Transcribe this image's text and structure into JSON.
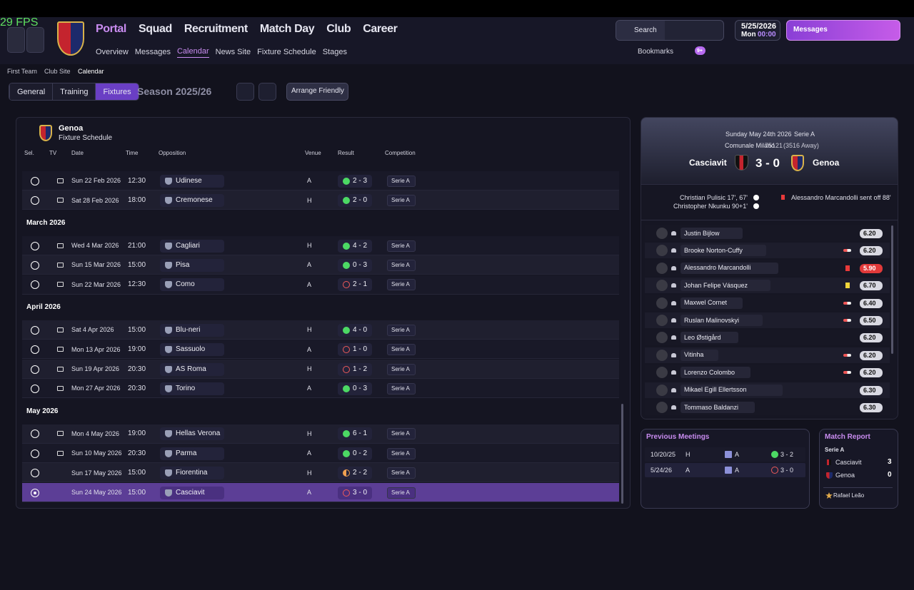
{
  "fps": "29 FPS",
  "nav": {
    "items": [
      "Portal",
      "Squad",
      "Recruitment",
      "Match Day",
      "Club",
      "Career"
    ],
    "subitems": [
      "Overview",
      "Messages",
      "Calendar",
      "News Site",
      "Fixture Schedule",
      "Stages"
    ],
    "search": "Search",
    "date": "5/25/2026",
    "day": "Mon",
    "time": "00:00",
    "messages": "Messages",
    "bookmarks": "Bookmarks",
    "badge": "9+"
  },
  "breadcrumb": [
    "First Team",
    "Club Site",
    "Calendar"
  ],
  "toolbar": {
    "tabs": [
      "General",
      "Training",
      "Fixtures"
    ],
    "season": "Season 2025/26",
    "arrange": "Arrange Friendly"
  },
  "fixtures": {
    "team": "Genoa",
    "subtitle": "Fixture Schedule",
    "columns": [
      "Sel.",
      "TV",
      "Date",
      "Time",
      "Opposition",
      "Venue",
      "Result",
      "Competition"
    ],
    "groups": [
      {
        "rows": [
          {
            "date": "Sun 22 Feb 2026",
            "time": "12:30",
            "opponent": "Udinese",
            "venue": "A",
            "result": "2 - 3",
            "competition": "Serie A",
            "tv": true,
            "outcome": "win"
          },
          {
            "date": "Sat 28 Feb 2026",
            "time": "18:00",
            "opponent": "Cremonese",
            "venue": "H",
            "result": "2 - 0",
            "competition": "Serie A",
            "tv": true,
            "outcome": "win"
          }
        ]
      },
      {
        "month": "March 2026",
        "rows": [
          {
            "date": "Wed 4 Mar 2026",
            "time": "21:00",
            "opponent": "Cagliari",
            "venue": "H",
            "result": "4 - 2",
            "competition": "Serie A",
            "tv": true,
            "outcome": "win"
          },
          {
            "date": "Sun 15 Mar 2026",
            "time": "15:00",
            "opponent": "Pisa",
            "venue": "A",
            "result": "0 - 3",
            "competition": "Serie A",
            "tv": true,
            "outcome": "win"
          },
          {
            "date": "Sun 22 Mar 2026",
            "time": "12:30",
            "opponent": "Como",
            "venue": "A",
            "result": "2 - 1",
            "competition": "Serie A",
            "tv": true,
            "outcome": "loss"
          }
        ]
      },
      {
        "month": "April 2026",
        "rows": [
          {
            "date": "Sat 4 Apr 2026",
            "time": "15:00",
            "opponent": "Blu-neri",
            "venue": "H",
            "result": "4 - 0",
            "competition": "Serie A",
            "tv": true,
            "outcome": "win"
          },
          {
            "date": "Mon 13 Apr 2026",
            "time": "19:00",
            "opponent": "Sassuolo",
            "venue": "A",
            "result": "1 - 0",
            "competition": "Serie A",
            "tv": true,
            "outcome": "loss"
          },
          {
            "date": "Sun 19 Apr 2026",
            "time": "20:30",
            "opponent": "AS Roma",
            "venue": "H",
            "result": "1 - 2",
            "competition": "Serie A",
            "tv": true,
            "outcome": "loss"
          },
          {
            "date": "Mon 27 Apr 2026",
            "time": "20:30",
            "opponent": "Torino",
            "venue": "A",
            "result": "0 - 3",
            "competition": "Serie A",
            "tv": true,
            "outcome": "win"
          }
        ]
      },
      {
        "month": "May 2026",
        "rows": [
          {
            "date": "Mon 4 May 2026",
            "time": "19:00",
            "opponent": "Hellas Verona",
            "venue": "H",
            "result": "6 - 1",
            "competition": "Serie A",
            "tv": true,
            "outcome": "win"
          },
          {
            "date": "Sun 10 May 2026",
            "time": "20:30",
            "opponent": "Parma",
            "venue": "A",
            "result": "0 - 2",
            "competition": "Serie A",
            "tv": true,
            "outcome": "win"
          },
          {
            "date": "Sun 17 May 2026",
            "time": "15:00",
            "opponent": "Fiorentina",
            "venue": "H",
            "result": "2 - 2",
            "competition": "Serie A",
            "tv": false,
            "outcome": "draw"
          },
          {
            "date": "Sun 24 May 2026",
            "time": "15:00",
            "opponent": "Casciavit",
            "venue": "A",
            "result": "3 - 0",
            "competition": "Serie A",
            "tv": false,
            "outcome": "loss",
            "selected": true
          }
        ]
      }
    ]
  },
  "match": {
    "date": "Sunday May 24th 2026",
    "competition": "Serie A",
    "stadium": "Comunale Milano",
    "attendance": "75121",
    "away_fans": "(3516 Away)",
    "home": "Casciavit",
    "score": "3 - 0",
    "away": "Genoa",
    "home_scorers": [
      "Christian Pulisic 17', 67'",
      "Christopher Nkunku 90+1'"
    ],
    "away_events": [
      "Alessandro Marcandolli sent off 88'"
    ],
    "players": [
      {
        "name": "Justin Bijlow",
        "rating": "6.20",
        "event": null
      },
      {
        "name": "Brooke Norton-Cuffy",
        "rating": "6.20",
        "event": "sub"
      },
      {
        "name": "Alessandro Marcandolli",
        "rating": "5.90",
        "event": "red"
      },
      {
        "name": "Johan Felipe Vásquez",
        "rating": "6.70",
        "event": "yellow"
      },
      {
        "name": "Maxwel Cornet",
        "rating": "6.40",
        "event": "sub"
      },
      {
        "name": "Ruslan Malinovskyi",
        "rating": "6.50",
        "event": "sub"
      },
      {
        "name": "Leo Østigård",
        "rating": "6.20",
        "event": null
      },
      {
        "name": "Vitinha",
        "rating": "6.20",
        "event": "sub"
      },
      {
        "name": "Lorenzo Colombo",
        "rating": "6.20",
        "event": "sub"
      },
      {
        "name": "Mikael Egill Ellertsson",
        "rating": "6.30",
        "event": null
      },
      {
        "name": "Tommaso Baldanzi",
        "rating": "6.30",
        "event": null
      }
    ]
  },
  "previous_meetings": {
    "title": "Previous Meetings",
    "rows": [
      {
        "date": "10/20/25",
        "venue": "H",
        "competition": "A",
        "result": "3 - 2",
        "outcome": "win"
      },
      {
        "date": "5/24/26",
        "venue": "A",
        "competition": "A",
        "result": "3 - 0",
        "outcome": "loss"
      }
    ]
  },
  "match_report": {
    "title": "Match Report",
    "competition": "Serie A",
    "teams": [
      {
        "name": "Casciavit",
        "score": "3"
      },
      {
        "name": "Genoa",
        "score": "0"
      }
    ],
    "motm": "Rafael Leão"
  }
}
